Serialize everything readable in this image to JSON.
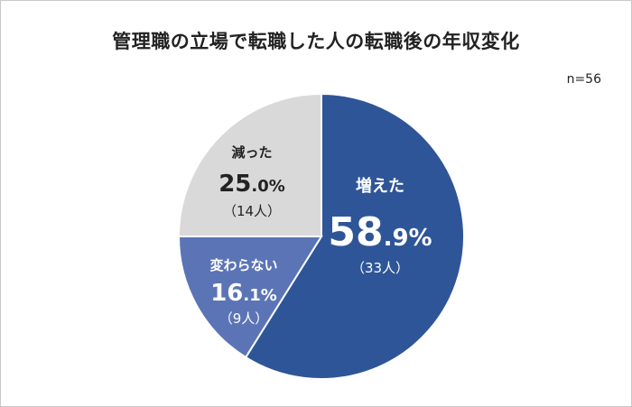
{
  "chart_data": {
    "type": "pie",
    "title": "管理職の立場で転職した人の転職後の年収変化",
    "sample_size": "n=56",
    "colors": {
      "増えた": "#2e5597",
      "変わらない": "#5b74b5",
      "減った": "#d9d9d9"
    },
    "slices": [
      {
        "label": "増えた",
        "value": 58.9,
        "pct_int": "58",
        "pct_dec": ".9%",
        "count": "（33人）"
      },
      {
        "label": "変わらない",
        "value": 16.1,
        "pct_int": "16",
        "pct_dec": ".1%",
        "count": "（9人）"
      },
      {
        "label": "減った",
        "value": 25.0,
        "pct_int": "25",
        "pct_dec": ".0%",
        "count": "（14人）"
      }
    ]
  }
}
